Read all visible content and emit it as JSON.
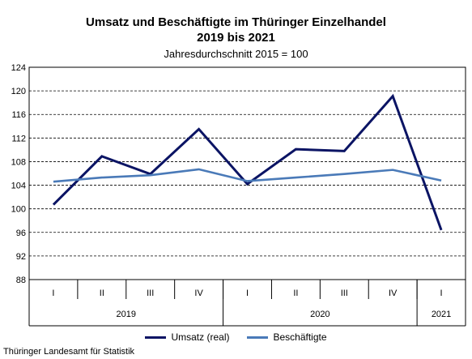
{
  "chart_data": {
    "type": "line",
    "title_line1": "Umsatz und Beschäftigte im Thüringer Einzelhandel",
    "title_line2": "2019 bis 2021",
    "subtitle": "Jahresdurchschnitt 2015 = 100",
    "quarters": [
      "I",
      "II",
      "III",
      "IV",
      "I",
      "II",
      "III",
      "IV",
      "I"
    ],
    "years": [
      {
        "label": "2019",
        "span": 4
      },
      {
        "label": "2020",
        "span": 4
      },
      {
        "label": "2021",
        "span": 1
      }
    ],
    "yticks": [
      88,
      92,
      96,
      100,
      104,
      108,
      112,
      116,
      120,
      124
    ],
    "ylim": [
      88,
      124
    ],
    "grid": true,
    "legend_position": "bottom",
    "series": [
      {
        "name": "Umsatz (real)",
        "color": "#0b1464",
        "values": [
          100.7,
          108.9,
          105.9,
          113.5,
          104.2,
          110.1,
          109.8,
          119.1,
          96.4
        ]
      },
      {
        "name": "Beschäftigte",
        "color": "#4a7ab8",
        "values": [
          104.6,
          105.3,
          105.7,
          106.7,
          104.7,
          105.3,
          105.9,
          106.6,
          104.8
        ]
      }
    ]
  },
  "source": "Thüringer Landesamt für Statistik"
}
